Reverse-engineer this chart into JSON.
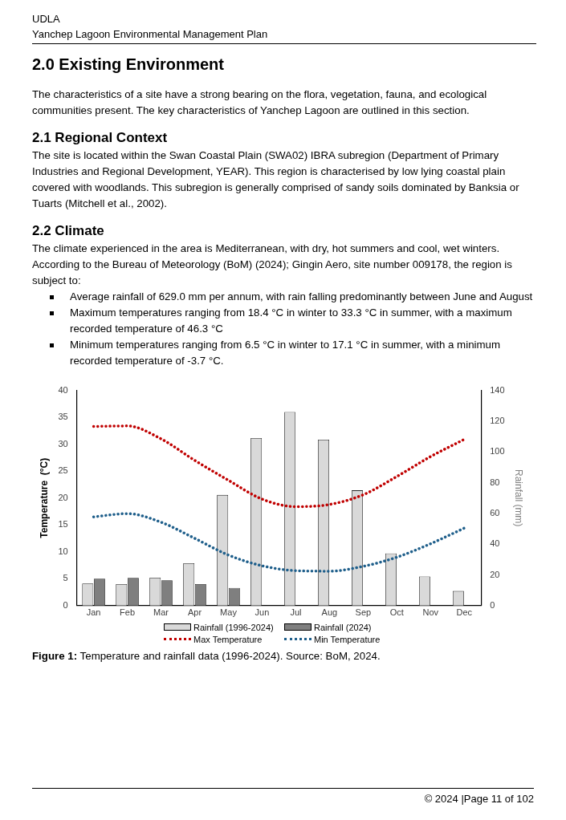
{
  "chart_data": {
    "type": "bar",
    "ylabel": "Temperature  (°C)",
    "y2label": "Rainfall (mm)",
    "categories": [
      "Jan",
      "Feb",
      "Mar",
      "Apr",
      "May",
      "Jun",
      "Jul",
      "Aug",
      "Sep",
      "Oct",
      "Nov",
      "Dec"
    ],
    "series": [
      {
        "name": "Rainfall (1996-2024)",
        "type": "bar",
        "axis": "y2",
        "color": "#d9d9d9",
        "values": [
          14.4,
          14,
          18.2,
          27.6,
          72,
          109,
          126,
          108,
          75,
          34,
          19,
          9.5
        ]
      },
      {
        "name": "Rainfall  (2024)",
        "type": "bar",
        "axis": "y2",
        "color": "#7f7f7f",
        "values": [
          17.5,
          18,
          16.5,
          14,
          11.5,
          null,
          null,
          null,
          null,
          null,
          null,
          null
        ]
      },
      {
        "name": "Max Temperature",
        "type": "line",
        "axis": "y",
        "color": "#c00000",
        "line_style": "dotted",
        "values": [
          33.3,
          33.4,
          31,
          27,
          23.3,
          19.8,
          18.4,
          18.8,
          20.6,
          24,
          27.7,
          30.9
        ]
      },
      {
        "name": "Min Temperature",
        "type": "line",
        "axis": "y",
        "color": "#1f5f8b",
        "line_style": "dotted",
        "values": [
          16.5,
          17.1,
          15.5,
          12.5,
          9.4,
          7.4,
          6.5,
          6.4,
          7.3,
          9,
          11.5,
          14.4
        ]
      }
    ],
    "ylim": [
      0,
      40
    ],
    "yticks": [
      0,
      5,
      10,
      15,
      20,
      25,
      30,
      35,
      40
    ],
    "y2lim": [
      0,
      140
    ],
    "y2ticks": [
      0,
      20,
      40,
      60,
      80,
      100,
      120,
      140
    ],
    "grid": false,
    "legend": "bottom",
    "marker": "none",
    "annotations": [
      "UDLA",
      "Yanchep Lagoon Environmental Management Plan",
      "2.0 Existing Environment",
      "The characteristics of a site have a strong bearing on the flora, vegetation, fauna, and ecological communities present. The key characteristics of Yanchep Lagoon are outlined in this section.",
      "2.1 Regional Context",
      "The site is located within the Swan Coastal Plain (SWA02) IBRA subregion (Department of Primary Industries and Regional Development, YEAR). This region is characterised by low lying coastal plain covered with woodlands. This subregion is generally comprised of sandy soils dominated by Banksia or Tuarts (Mitchell et al., 2002).",
      "2.2 Climate",
      "The climate experienced in the area is Mediterranean, with dry, hot summers and cool, wet winters. According to the Bureau of Meteorology (BoM) (2024); Gingin Aero, site number 009178, the region is subject to:",
      "Average rainfall of 629.0 mm per annum, with rain falling predominantly between June and August",
      "Maximum temperatures ranging from 18.4 °C in winter to 33.3 °C in summer, with a maximum recorded temperature of 46.3 °C",
      "Minimum temperatures ranging from 6.5 °C in winter to 17.1 °C in summer, with a minimum recorded temperature of -3.7 °C.",
      "Figure 1: Temperature and rainfall data (1996-2024). Source: BoM, 2024.",
      "© 2024 |Page 11 of 102"
    ]
  }
}
